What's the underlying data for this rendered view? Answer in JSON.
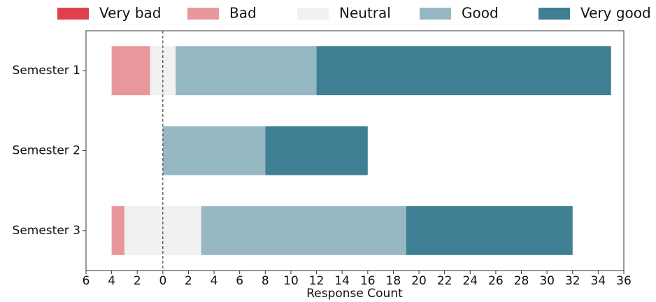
{
  "chart_data": {
    "type": "diverging_bar",
    "categories": [
      "Semester 1",
      "Semester 2",
      "Semester 3"
    ],
    "series": [
      {
        "name": "Very bad",
        "color": "#e0414f",
        "values": [
          0,
          0,
          0
        ]
      },
      {
        "name": "Bad",
        "color": "#e8979c",
        "values": [
          3,
          0,
          1
        ]
      },
      {
        "name": "Neutral",
        "color": "#f0f1f0",
        "values": [
          2,
          0,
          6
        ]
      },
      {
        "name": "Good",
        "color": "#96b8c2",
        "values": [
          11,
          8,
          16
        ]
      },
      {
        "name": "Very good",
        "color": "#3e7f93",
        "values": [
          23,
          8,
          13
        ]
      }
    ],
    "xlabel": "Response Count",
    "xlim": [
      -6,
      36
    ],
    "xticks": [
      {
        "value": -6,
        "label": "6"
      },
      {
        "value": -4,
        "label": "4"
      },
      {
        "value": -2,
        "label": "2"
      },
      0,
      2,
      4,
      6,
      8,
      10,
      12,
      14,
      16,
      18,
      20,
      22,
      24,
      26,
      28,
      30,
      32,
      34,
      36
    ],
    "legend": "top"
  }
}
